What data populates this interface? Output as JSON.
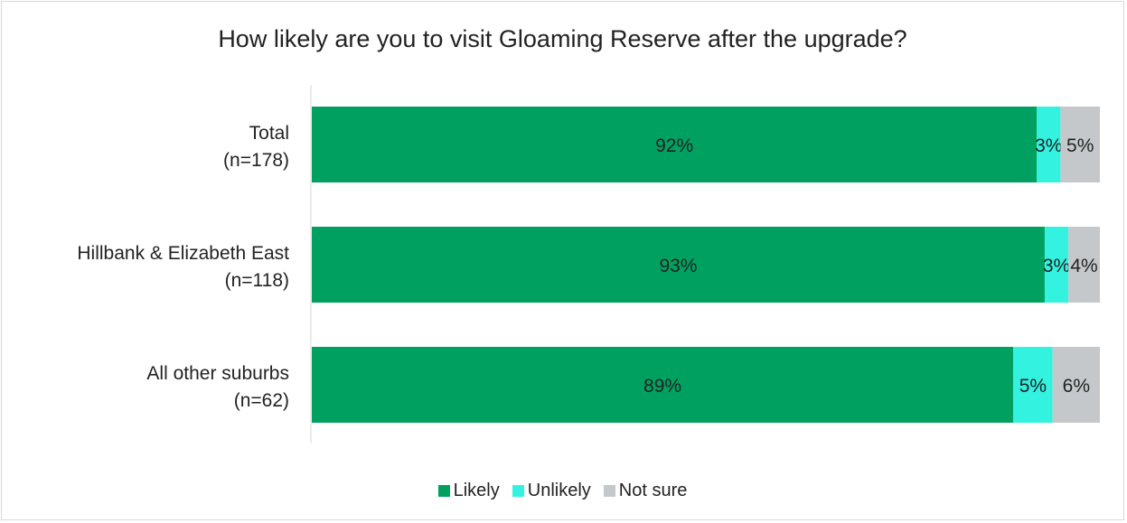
{
  "chart_data": {
    "type": "bar",
    "orientation": "horizontal",
    "stacked": true,
    "title": "How likely are you to visit Gloaming Reserve after the upgrade?",
    "categories": [
      [
        "Total",
        "(n=178)"
      ],
      [
        "Hillbank & Elizabeth East",
        "(n=118)"
      ],
      [
        "All other suburbs",
        "(n=62)"
      ]
    ],
    "series": [
      {
        "name": "Likely",
        "color": "#00a160",
        "values": [
          92,
          93,
          89
        ],
        "labels": [
          "92%",
          "93%",
          "89%"
        ]
      },
      {
        "name": "Unlikely",
        "color": "#33f2df",
        "values": [
          3,
          3,
          5
        ],
        "labels": [
          "3%",
          "3%",
          "5%"
        ]
      },
      {
        "name": "Not sure",
        "color": "#c5c8ca",
        "values": [
          5,
          4,
          6
        ],
        "labels": [
          "5%",
          "4%",
          "6%"
        ]
      }
    ],
    "xlim": [
      0,
      100
    ],
    "legend_position": "bottom",
    "grid": false
  }
}
